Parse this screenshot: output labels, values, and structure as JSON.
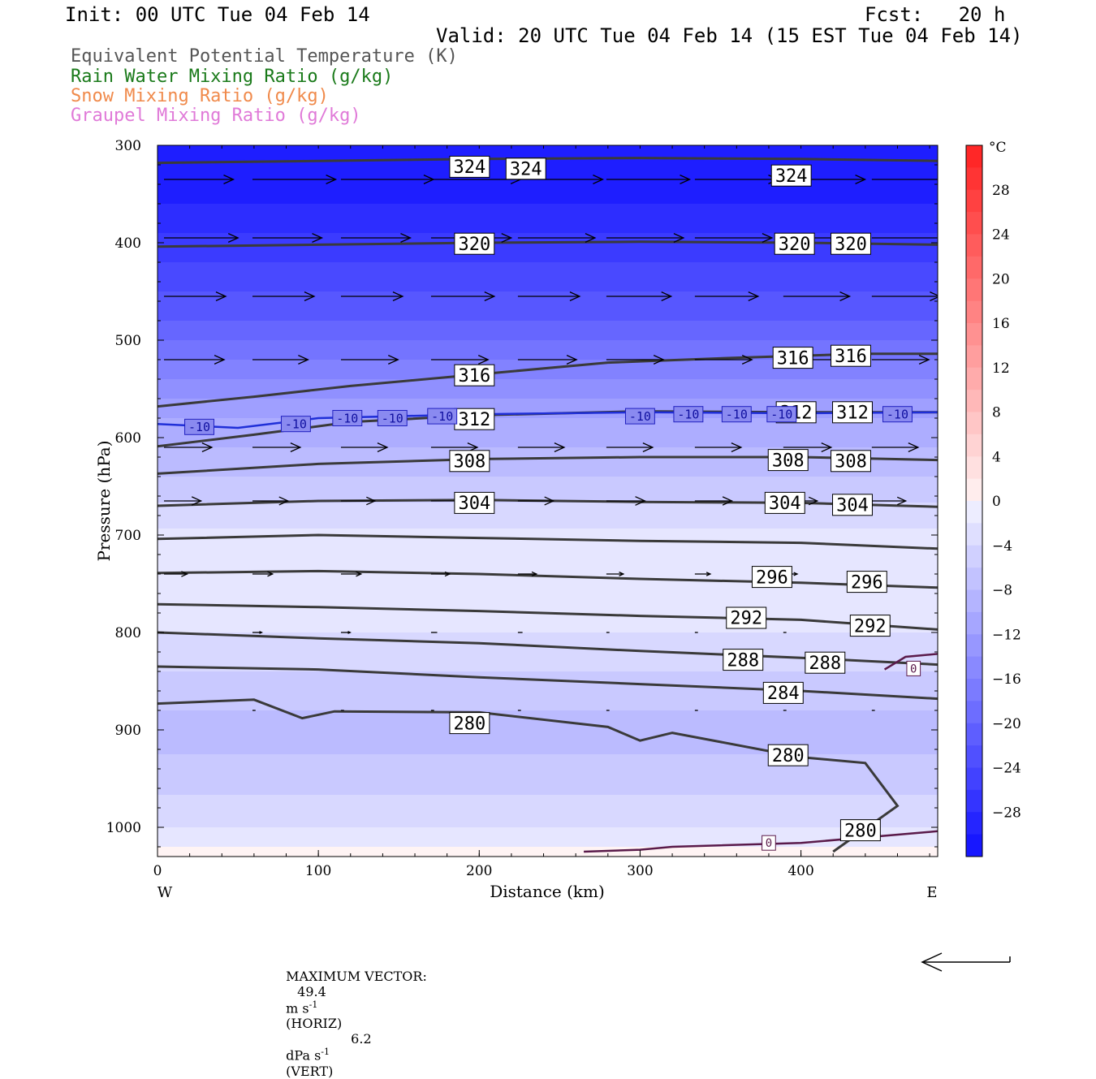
{
  "header": {
    "init": "Init: 00 UTC Tue 04 Feb 14",
    "fcst": "Fcst:   20 h",
    "valid": "Valid: 20 UTC Tue 04 Feb 14 (15 EST Tue 04 Feb 14)"
  },
  "legend": [
    {
      "label": "Equivalent Potential Temperature (K)",
      "color": "#555555"
    },
    {
      "label": "Rain Water Mixing Ratio (g/kg)",
      "color": "#1a7a1a"
    },
    {
      "label": "Snow Mixing Ratio (g/kg)",
      "color": "#f08a4b"
    },
    {
      "label": "Graupel Mixing Ratio (g/kg)",
      "color": "#e07ad8"
    }
  ],
  "footer": {
    "prefix": "MAXIMUM VECTOR:",
    "horiz_value": "49.4",
    "horiz_unit": "m s",
    "horiz_tag": "(HORIZ)",
    "vert_value": "6.2",
    "vert_unit": "dPa s",
    "vert_tag": "(VERT)",
    "exponent": "-1"
  },
  "chart_data": {
    "type": "contour-cross-section",
    "xlabel": "Distance (km)",
    "ylabel": "Pressure (hPa)",
    "x_range": [
      0,
      485
    ],
    "y_range": [
      300,
      1030
    ],
    "x_ticks": [
      0,
      100,
      200,
      300,
      400
    ],
    "y_ticks": [
      300,
      400,
      500,
      600,
      700,
      800,
      900,
      1000
    ],
    "x_end_labels": {
      "left": "W",
      "right": "E"
    },
    "colorbar": {
      "unit": "°C",
      "ticks": [
        28,
        24,
        20,
        16,
        12,
        8,
        4,
        0,
        -4,
        -8,
        -12,
        -16,
        -20,
        -24,
        -28
      ],
      "levels": [
        32,
        30,
        28,
        26,
        24,
        22,
        20,
        18,
        16,
        14,
        12,
        10,
        8,
        6,
        4,
        2,
        0,
        -2,
        -4,
        -6,
        -8,
        -10,
        -12,
        -14,
        -16,
        -18,
        -20,
        -22,
        -24,
        -26,
        -28,
        -30,
        -32
      ],
      "warm_color": "#ff2020",
      "cold_color": "#1010ff"
    },
    "temperature_bands": [
      {
        "p": 300,
        "t": -31
      },
      {
        "p": 360,
        "t": -29
      },
      {
        "p": 420,
        "t": -25
      },
      {
        "p": 480,
        "t": -21
      },
      {
        "p": 540,
        "t": -15
      },
      {
        "p": 580,
        "t": -11
      },
      {
        "p": 640,
        "t": -7
      },
      {
        "p": 680,
        "t": -4
      },
      {
        "p": 720,
        "t": -1
      },
      {
        "p": 780,
        "t": -2
      },
      {
        "p": 840,
        "t": -5
      },
      {
        "p": 900,
        "t": -8
      },
      {
        "p": 950,
        "t": -6
      },
      {
        "p": 1000,
        "t": -3
      },
      {
        "p": 1030,
        "t": 0
      }
    ],
    "theta_e_contours": [
      {
        "level": "324",
        "points": [
          [
            0,
            318
          ],
          [
            100,
            316
          ],
          [
            200,
            314
          ],
          [
            300,
            313
          ],
          [
            400,
            314
          ],
          [
            485,
            316
          ]
        ],
        "labels": [
          [
            194,
            322
          ],
          [
            229,
            324
          ],
          [
            394,
            331
          ]
        ]
      },
      {
        "level": "320",
        "points": [
          [
            0,
            404
          ],
          [
            100,
            402
          ],
          [
            200,
            400
          ],
          [
            300,
            399
          ],
          [
            400,
            400
          ],
          [
            485,
            402
          ]
        ],
        "labels": [
          [
            197,
            401
          ],
          [
            396,
            401
          ],
          [
            431,
            401
          ]
        ]
      },
      {
        "level": "316",
        "points": [
          [
            0,
            568
          ],
          [
            60,
            558
          ],
          [
            120,
            547
          ],
          [
            200,
            535
          ],
          [
            280,
            523
          ],
          [
            360,
            518
          ],
          [
            440,
            514
          ],
          [
            485,
            514
          ]
        ],
        "labels": [
          [
            197,
            536
          ],
          [
            395,
            518
          ],
          [
            431,
            516
          ]
        ]
      },
      {
        "level": "312",
        "points": [
          [
            0,
            609
          ],
          [
            60,
            597
          ],
          [
            120,
            584
          ],
          [
            200,
            577
          ],
          [
            300,
            573
          ],
          [
            400,
            574
          ],
          [
            485,
            574
          ]
        ],
        "labels": [
          [
            197,
            581
          ],
          [
            397,
            574
          ],
          [
            432,
            574
          ]
        ]
      },
      {
        "level": "308",
        "points": [
          [
            0,
            637
          ],
          [
            100,
            627
          ],
          [
            200,
            622
          ],
          [
            300,
            620
          ],
          [
            400,
            620
          ],
          [
            485,
            623
          ]
        ],
        "labels": [
          [
            194,
            624
          ],
          [
            392,
            623
          ],
          [
            431,
            624
          ]
        ]
      },
      {
        "level": "304",
        "points": [
          [
            0,
            670
          ],
          [
            100,
            665
          ],
          [
            200,
            664
          ],
          [
            300,
            666
          ],
          [
            400,
            667
          ],
          [
            485,
            671
          ]
        ],
        "labels": [
          [
            197,
            667
          ],
          [
            390,
            667
          ],
          [
            432,
            669
          ]
        ]
      },
      {
        "level": "300",
        "points": [
          [
            0,
            704
          ],
          [
            100,
            700
          ],
          [
            200,
            703
          ],
          [
            300,
            706
          ],
          [
            400,
            708
          ],
          [
            485,
            714
          ]
        ],
        "labels": []
      },
      {
        "level": "296",
        "points": [
          [
            0,
            739
          ],
          [
            100,
            737
          ],
          [
            200,
            740
          ],
          [
            300,
            745
          ],
          [
            400,
            749
          ],
          [
            485,
            754
          ]
        ],
        "labels": [
          [
            382,
            743
          ],
          [
            441,
            748
          ]
        ]
      },
      {
        "level": "292",
        "points": [
          [
            0,
            771
          ],
          [
            100,
            774
          ],
          [
            200,
            778
          ],
          [
            300,
            783
          ],
          [
            400,
            787
          ],
          [
            485,
            797
          ]
        ],
        "labels": [
          [
            366,
            785
          ],
          [
            443,
            793
          ]
        ]
      },
      {
        "level": "288",
        "points": [
          [
            0,
            800
          ],
          [
            100,
            806
          ],
          [
            200,
            811
          ],
          [
            300,
            819
          ],
          [
            400,
            826
          ],
          [
            485,
            833
          ]
        ],
        "labels": [
          [
            364,
            828
          ],
          [
            415,
            831
          ]
        ]
      },
      {
        "level": "284",
        "points": [
          [
            0,
            835
          ],
          [
            100,
            838
          ],
          [
            200,
            846
          ],
          [
            300,
            853
          ],
          [
            400,
            860
          ],
          [
            485,
            868
          ]
        ],
        "labels": [
          [
            389,
            862
          ]
        ]
      },
      {
        "level": "280",
        "points": [
          [
            0,
            873
          ],
          [
            60,
            869
          ],
          [
            90,
            888
          ],
          [
            110,
            881
          ],
          [
            200,
            882
          ],
          [
            280,
            897
          ],
          [
            300,
            911
          ],
          [
            320,
            903
          ],
          [
            400,
            928
          ],
          [
            440,
            934
          ],
          [
            460,
            978
          ],
          [
            420,
            1025
          ]
        ],
        "labels": [
          [
            194,
            893
          ],
          [
            392,
            926
          ],
          [
            437,
            1003
          ]
        ]
      }
    ],
    "iso_m10": {
      "level": "-10",
      "points": [
        [
          0,
          586
        ],
        [
          50,
          590
        ],
        [
          100,
          580
        ],
        [
          200,
          576
        ],
        [
          300,
          574
        ],
        [
          400,
          575
        ],
        [
          485,
          574
        ]
      ],
      "labels": [
        [
          26,
          589
        ],
        [
          86,
          586
        ],
        [
          118,
          580
        ],
        [
          146,
          580
        ],
        [
          177,
          578
        ],
        [
          300,
          578
        ],
        [
          330,
          576
        ],
        [
          360,
          576
        ],
        [
          388,
          576
        ],
        [
          460,
          576
        ]
      ]
    },
    "zero_contours": [
      {
        "level": "0",
        "points": [
          [
            265,
            1025
          ],
          [
            300,
            1023
          ],
          [
            320,
            1020
          ],
          [
            400,
            1016
          ],
          [
            485,
            1004
          ]
        ],
        "labels": [
          [
            380,
            1016
          ]
        ]
      },
      {
        "level": "0",
        "points": [
          [
            452,
            838
          ],
          [
            465,
            825
          ],
          [
            485,
            822
          ]
        ],
        "labels": [
          [
            470,
            837
          ]
        ]
      }
    ],
    "wind_vectors": [
      {
        "p": 335,
        "vectors": [
          [
            0,
            45
          ],
          [
            55,
            54
          ],
          [
            110,
            60
          ],
          [
            166,
            58
          ],
          [
            220,
            55
          ],
          [
            275,
            54
          ],
          [
            330,
            54
          ],
          [
            385,
            53
          ],
          [
            440,
            54
          ]
        ]
      },
      {
        "p": 395,
        "vectors": [
          [
            0,
            48
          ],
          [
            55,
            45
          ],
          [
            110,
            45
          ],
          [
            166,
            52
          ],
          [
            220,
            50
          ],
          [
            275,
            50
          ],
          [
            330,
            50
          ],
          [
            385,
            48
          ],
          [
            440,
            50
          ]
        ]
      },
      {
        "p": 455,
        "vectors": [
          [
            0,
            40
          ],
          [
            55,
            40
          ],
          [
            110,
            40
          ],
          [
            166,
            41
          ],
          [
            220,
            40
          ],
          [
            275,
            42
          ],
          [
            330,
            41
          ],
          [
            385,
            43
          ],
          [
            440,
            44
          ]
        ]
      },
      {
        "p": 520,
        "vectors": [
          [
            0,
            39
          ],
          [
            55,
            36
          ],
          [
            110,
            37
          ],
          [
            166,
            37
          ],
          [
            220,
            38
          ],
          [
            275,
            37
          ],
          [
            330,
            37
          ],
          [
            385,
            37
          ],
          [
            440,
            37
          ]
        ]
      },
      {
        "p": 610,
        "vectors": [
          [
            0,
            31
          ],
          [
            55,
            31
          ],
          [
            110,
            30
          ],
          [
            166,
            30
          ],
          [
            220,
            30
          ],
          [
            275,
            30
          ],
          [
            330,
            30
          ],
          [
            385,
            31
          ],
          [
            440,
            30
          ]
        ]
      },
      {
        "p": 665,
        "vectors": [
          [
            0,
            24
          ],
          [
            55,
            23
          ],
          [
            110,
            22
          ],
          [
            166,
            21
          ],
          [
            220,
            23
          ],
          [
            275,
            25
          ],
          [
            330,
            24
          ],
          [
            385,
            22
          ],
          [
            440,
            22
          ]
        ]
      },
      {
        "p": 740,
        "vectors": [
          [
            0,
            15
          ],
          [
            55,
            13
          ],
          [
            110,
            13
          ],
          [
            166,
            12
          ],
          [
            220,
            12
          ],
          [
            275,
            11
          ],
          [
            330,
            10
          ],
          [
            385,
            9
          ],
          [
            440,
            8
          ]
        ]
      },
      {
        "p": 800,
        "vectors": [
          [
            55,
            6
          ],
          [
            110,
            6
          ],
          [
            166,
            4
          ],
          [
            220,
            3
          ],
          [
            275,
            2
          ],
          [
            330,
            2
          ],
          [
            385,
            2
          ],
          [
            440,
            3
          ]
        ]
      },
      {
        "p": 880,
        "vectors": [
          [
            55,
            2
          ],
          [
            110,
            2
          ],
          [
            166,
            2
          ],
          [
            220,
            2
          ],
          [
            275,
            2
          ],
          [
            330,
            2
          ],
          [
            385,
            2
          ],
          [
            440,
            2
          ]
        ]
      }
    ]
  }
}
